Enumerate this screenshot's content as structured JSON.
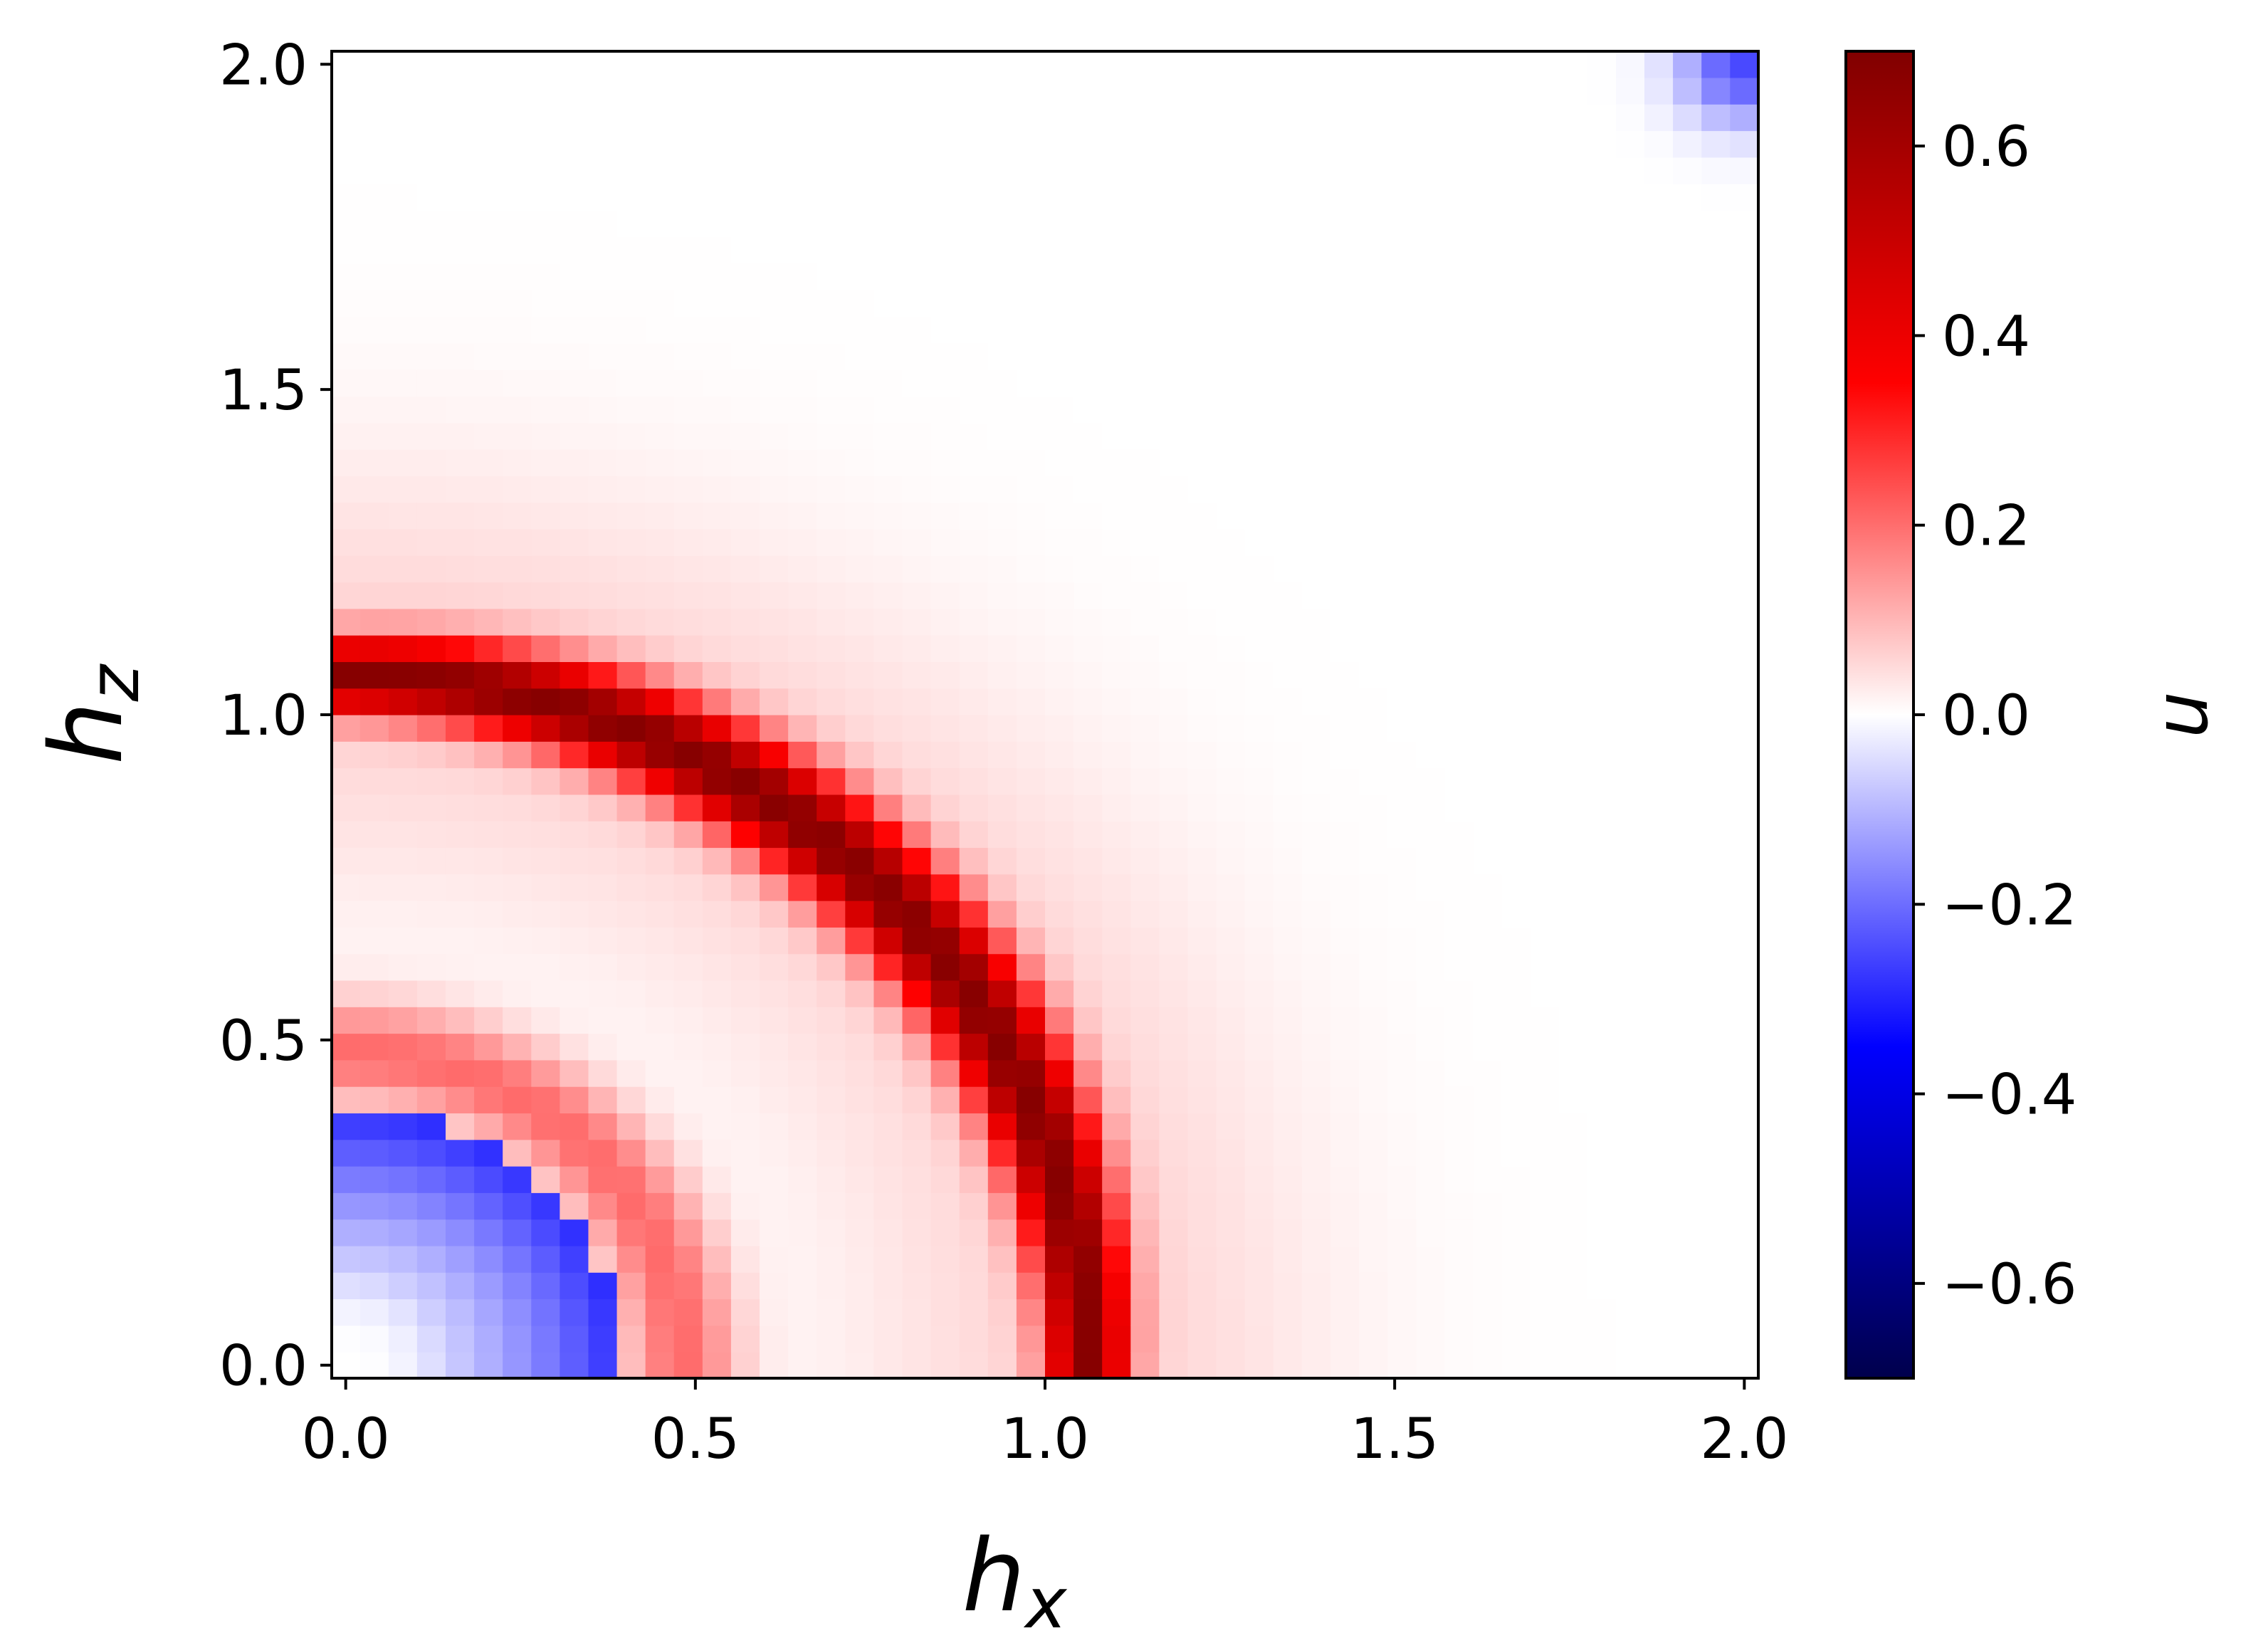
{
  "chart_data": {
    "type": "heatmap",
    "title": "",
    "xlabel": "h",
    "xlabel_sub": "x",
    "ylabel": "h",
    "ylabel_sub": "z",
    "xlim": [
      -0.02,
      2.02
    ],
    "ylim": [
      -0.02,
      2.02
    ],
    "grid": false,
    "x_ticks": [
      0.0,
      0.5,
      1.0,
      1.5,
      2.0
    ],
    "x_tick_labels": [
      "0.0",
      "0.5",
      "1.0",
      "1.5",
      "2.0"
    ],
    "y_ticks": [
      0.0,
      0.5,
      1.0,
      1.5,
      2.0
    ],
    "y_tick_labels": [
      "0.0",
      "0.5",
      "1.0",
      "1.5",
      "2.0"
    ],
    "grid_resolution": 50,
    "x_range": [
      0.0,
      2.0
    ],
    "y_range": [
      0.0,
      2.0
    ],
    "colormap": "seismic",
    "colormap_stops": [
      "#00004c",
      "#0000ff",
      "#ffffff",
      "#ff0000",
      "#800000"
    ],
    "colorbar": {
      "label": "u",
      "vmin": -0.7,
      "vmax": 0.7,
      "ticks": [
        -0.6,
        -0.4,
        -0.2,
        0.0,
        0.2,
        0.4,
        0.6
      ],
      "tick_labels": [
        "−0.6",
        "−0.4",
        "−0.2",
        "0.0",
        "0.2",
        "0.4",
        "0.6"
      ]
    },
    "features": [
      {
        "name": "red arc",
        "shape": "quarter-circle centered at origin",
        "radius": 1.06,
        "peak_value": 0.62
      },
      {
        "name": "blue lobe",
        "shape": "disk near origin",
        "radius": 0.4,
        "min_value": -0.3
      },
      {
        "name": "inner pink ring",
        "radius": 0.48,
        "value": 0.2
      },
      {
        "name": "blue corner",
        "location": [
          2.0,
          2.0
        ],
        "min_value": -0.25
      }
    ]
  }
}
